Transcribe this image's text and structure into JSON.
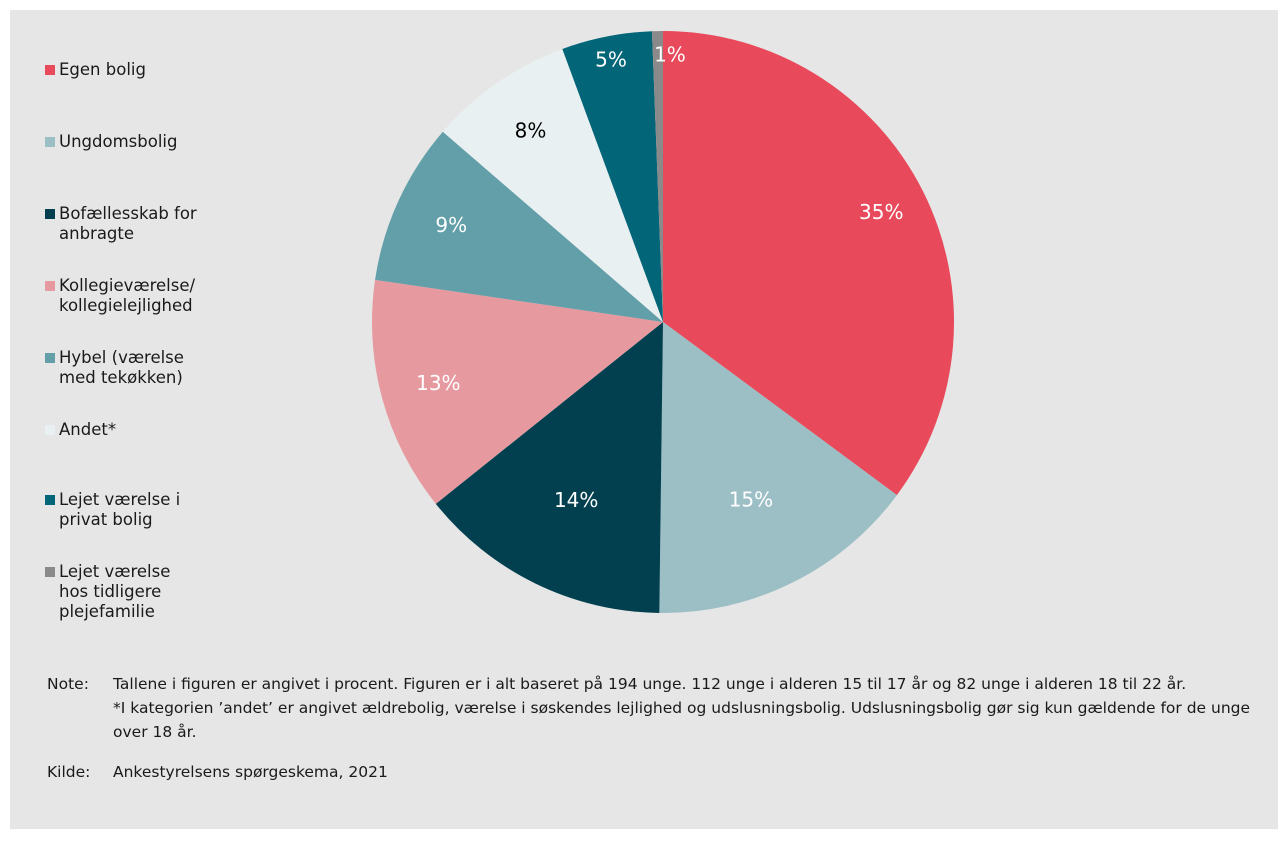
{
  "chart_data": {
    "type": "pie",
    "start_angle": "top",
    "direction": "clockwise",
    "slices": [
      {
        "label": "Egen bolig",
        "value": 35,
        "display": "35%",
        "color": "#e84a5b",
        "text_color": "#ffffff"
      },
      {
        "label": "Ungdomsbolig",
        "value": 15,
        "display": "15%",
        "color": "#9cbfc6",
        "text_color": "#ffffff"
      },
      {
        "label": "Bofællesskab for anbragte",
        "value": 14,
        "display": "14%",
        "color": "#02404f",
        "text_color": "#ffffff"
      },
      {
        "label": "Kollegieværelse/ kollegielejlighed",
        "value": 13,
        "display": "13%",
        "color": "#e69aa0",
        "text_color": "#ffffff"
      },
      {
        "label": "Hybel (værelse med tekøkken)",
        "value": 9,
        "display": "9%",
        "color": "#629fa9",
        "text_color": "#ffffff"
      },
      {
        "label": "Andet*",
        "value": 8,
        "display": "8%",
        "color": "#e9f0f2",
        "text_color": "#000000"
      },
      {
        "label": "Lejet værelse i privat bolig",
        "value": 5,
        "display": "5%",
        "color": "#036578",
        "text_color": "#ffffff"
      },
      {
        "label": "Lejet værelse hos tidligere plejefamilie",
        "value": 0.6,
        "display": "1%",
        "color": "#8a8a8a",
        "text_color": "#ffffff"
      }
    ]
  },
  "legend": [
    {
      "lines": [
        "Egen bolig"
      ],
      "color": "#e84a5b"
    },
    {
      "lines": [
        "Ungdomsbolig"
      ],
      "color": "#9cbfc6"
    },
    {
      "lines": [
        "Bofællesskab for",
        "anbragte"
      ],
      "color": "#02404f"
    },
    {
      "lines": [
        "Kollegieværelse/",
        "kollegielejlighed"
      ],
      "color": "#e69aa0"
    },
    {
      "lines": [
        "Hybel (værelse",
        "med tekøkken)"
      ],
      "color": "#629fa9"
    },
    {
      "lines": [
        "Andet*"
      ],
      "color": "#e9f0f2"
    },
    {
      "lines": [
        "Lejet værelse i",
        "privat bolig"
      ],
      "color": "#036578"
    },
    {
      "lines": [
        "Lejet værelse",
        "hos tidligere",
        "plejefamilie"
      ],
      "color": "#8a8a8a"
    }
  ],
  "notes": {
    "note_label": "Note:",
    "note_text_1": "Tallene i figuren er angivet i procent. Figuren er i alt baseret på 194 unge. 112 unge i alderen 15 til 17 år og 82 unge i alderen 18 til 22 år.",
    "note_text_2": "*I kategorien ’andet’ er angivet ældrebolig, værelse i søskendes lejlighed og udslusningsbolig. Udslusningsbolig gør sig kun gældende for de unge over 18 år.",
    "source_label": "Kilde:",
    "source_text": "Ankestyrelsens spørgeskema, 2021"
  },
  "colors": {
    "panel_background": "#e6e6e6",
    "page_background": "#ffffff"
  }
}
